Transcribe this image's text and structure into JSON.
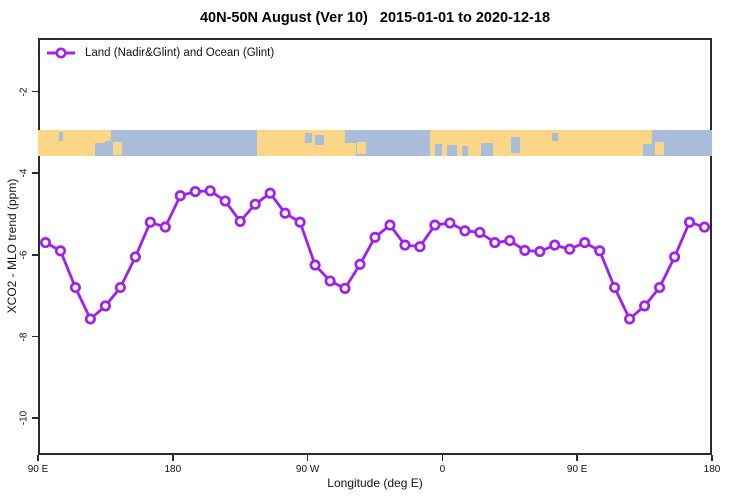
{
  "title": "40N-50N August (Ver 10)   2015-01-01 to 2020-12-18",
  "legend": {
    "position": "top-left"
  },
  "colors": {
    "line": "#A020F0",
    "marker_fill": "#ffffff",
    "land": "#FBD687",
    "ocean": "#A9BCD9",
    "axis": "#2b2b2b",
    "text": "#111111"
  },
  "chart_data": {
    "type": "line",
    "title": "40N-50N August (Ver 10)   2015-01-01 to 2020-12-18",
    "xlabel": "Longitude (deg E)",
    "ylabel": "XCO2 - MLO trend (ppm)",
    "xlim": [
      90,
      540
    ],
    "ylim": [
      -10.9,
      -0.69
    ],
    "grid": false,
    "legend_position": "top-left",
    "x_ticks": [
      {
        "deg": 90,
        "label": "90 E"
      },
      {
        "deg": 180,
        "label": "180"
      },
      {
        "deg": 270,
        "label": "90 W"
      },
      {
        "deg": 360,
        "label": "0"
      },
      {
        "deg": 450,
        "label": "90 E"
      },
      {
        "deg": 540,
        "label": "180"
      }
    ],
    "y_ticks": [
      {
        "value": -2,
        "label": "-2"
      },
      {
        "value": -4,
        "label": "-4"
      },
      {
        "value": -6,
        "label": "-6"
      },
      {
        "value": -8,
        "label": "-8"
      },
      {
        "value": -10,
        "label": "-10"
      }
    ],
    "series": [
      {
        "name": "Land (Nadir&Glint) and Ocean (Glint)",
        "color": "#A020F0",
        "marker": "open-circle",
        "x_deg": [
          95,
          105,
          115,
          125,
          135,
          145,
          155,
          165,
          175,
          185,
          195,
          205,
          215,
          225,
          235,
          245,
          255,
          265,
          275,
          285,
          295,
          305,
          315,
          325,
          335,
          345,
          355,
          365,
          375,
          385,
          395,
          405,
          415,
          425,
          435,
          445,
          455,
          465,
          475,
          485,
          495,
          505,
          515,
          525,
          535
        ],
        "y_ppm": [
          -5.7,
          -5.9,
          -6.8,
          -7.57,
          -7.25,
          -6.8,
          -6.05,
          -5.2,
          -5.32,
          -4.55,
          -4.45,
          -4.43,
          -4.68,
          -5.18,
          -4.76,
          -4.49,
          -4.98,
          -5.2,
          -6.25,
          -6.64,
          -6.82,
          -6.23,
          -5.57,
          -5.27,
          -5.76,
          -5.8,
          -5.27,
          -5.22,
          -5.41,
          -5.45,
          -5.7,
          -5.65,
          -5.89,
          -5.92,
          -5.76,
          -5.86,
          -5.7,
          -5.9,
          -6.8,
          -7.57,
          -7.25,
          -6.8,
          -6.05,
          -5.2,
          -5.32
        ]
      }
    ],
    "map_band": {
      "description": "40N-50N world land/ocean strip",
      "value_top": -2.95,
      "value_bottom": -3.57,
      "land_color": "#FBD687",
      "ocean_color": "#A9BCD9",
      "segments": [
        {
          "kind": "land",
          "from": 90,
          "to": 135
        },
        {
          "kind": "ocean",
          "from": 135,
          "to": 236
        },
        {
          "kind": "land",
          "from": 236,
          "to": 302
        },
        {
          "kind": "ocean",
          "from": 302,
          "to": 352
        },
        {
          "kind": "land",
          "from": 352,
          "to": 500
        },
        {
          "kind": "ocean",
          "from": 500,
          "to": 540
        }
      ],
      "patches": [
        {
          "kind": "ocean",
          "from": 104,
          "to": 107,
          "top": 0.08,
          "height": 0.34
        },
        {
          "kind": "ocean",
          "from": 128,
          "to": 135,
          "top": 0.5,
          "height": 0.5
        },
        {
          "kind": "land",
          "from": 135,
          "to": 139,
          "top": 0.0,
          "height": 0.42
        },
        {
          "kind": "land",
          "from": 140,
          "to": 146,
          "top": 0.45,
          "height": 0.52
        },
        {
          "kind": "ocean",
          "from": 268,
          "to": 273,
          "top": 0.12,
          "height": 0.4
        },
        {
          "kind": "ocean",
          "from": 275,
          "to": 281,
          "top": 0.18,
          "height": 0.42
        },
        {
          "kind": "ocean",
          "from": 295,
          "to": 302,
          "top": 0.0,
          "height": 0.5
        },
        {
          "kind": "land",
          "from": 303,
          "to": 309,
          "top": 0.45,
          "height": 0.5
        },
        {
          "kind": "ocean",
          "from": 355,
          "to": 360,
          "top": 0.55,
          "height": 0.45
        },
        {
          "kind": "ocean",
          "from": 363,
          "to": 370,
          "top": 0.6,
          "height": 0.4
        },
        {
          "kind": "ocean",
          "from": 373,
          "to": 377,
          "top": 0.62,
          "height": 0.38
        },
        {
          "kind": "ocean",
          "from": 386,
          "to": 394,
          "top": 0.5,
          "height": 0.5
        },
        {
          "kind": "ocean",
          "from": 406,
          "to": 412,
          "top": 0.28,
          "height": 0.6
        },
        {
          "kind": "ocean",
          "from": 433,
          "to": 437,
          "top": 0.12,
          "height": 0.3
        },
        {
          "kind": "ocean",
          "from": 494,
          "to": 500,
          "top": 0.55,
          "height": 0.45
        },
        {
          "kind": "land",
          "from": 502,
          "to": 508,
          "top": 0.45,
          "height": 0.52
        }
      ]
    }
  }
}
